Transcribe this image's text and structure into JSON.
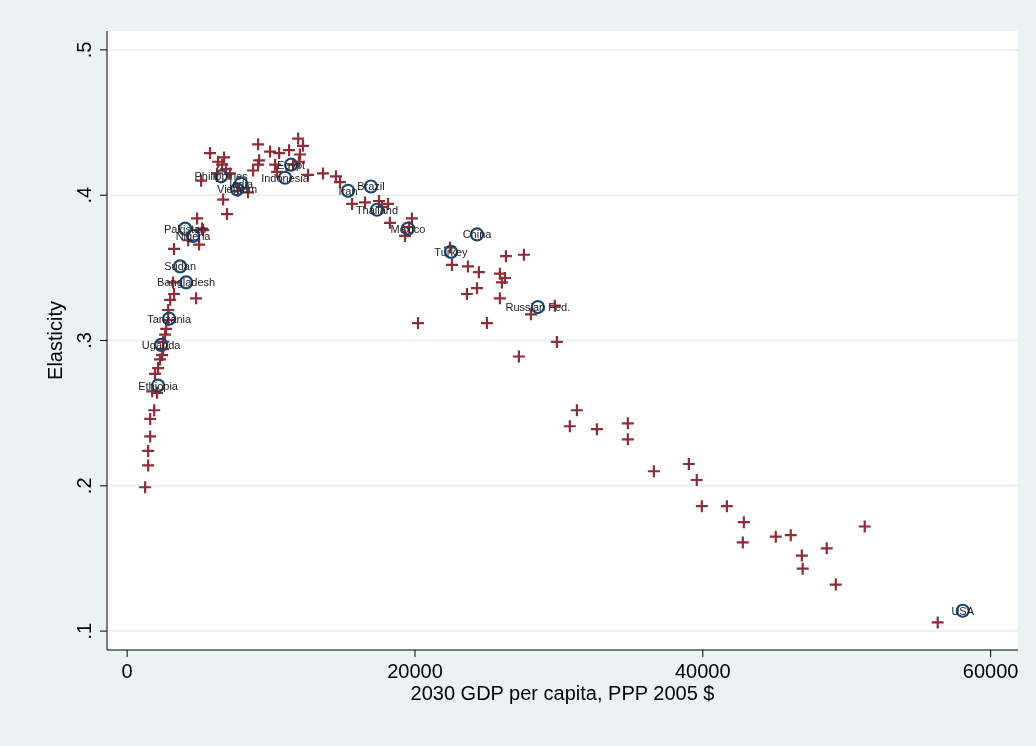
{
  "chart_data": {
    "type": "scatter",
    "xlabel": "2030 GDP per capita, PPP 2005 $",
    "ylabel": "Elasticity",
    "xlim": [
      -1400,
      61900
    ],
    "ylim": [
      0.087,
      0.513
    ],
    "xticks": [
      0,
      20000,
      40000,
      60000
    ],
    "yticks": [
      {
        "value": 0.1,
        "label": ".1"
      },
      {
        "value": 0.2,
        "label": ".2"
      },
      {
        "value": 0.3,
        "label": ".3"
      },
      {
        "value": 0.4,
        "label": ".4"
      },
      {
        "value": 0.5,
        "label": ".5"
      }
    ],
    "grid": "y",
    "series": [
      {
        "color": "#8e2c38",
        "marker": "cross",
        "x": [
          1250,
          1460,
          1460,
          1600,
          1600,
          1880,
          1740,
          2080,
          1940,
          2150,
          2290,
          2430,
          2500,
          2500,
          2640,
          2710,
          2850,
          2850,
          2990,
          3260,
          3190,
          4790,
          3260,
          4860,
          5210,
          4240,
          5000,
          5280,
          6670,
          6940,
          5140,
          5760,
          6320,
          6740,
          6600,
          6880,
          6250,
          7150,
          7710,
          8400,
          9100,
          9170,
          9100,
          8750,
          9930,
          10560,
          11250,
          11880,
          12220,
          12010,
          11940,
          11530,
          10280,
          10420,
          12570,
          13610,
          14510,
          14790,
          15630,
          16530,
          17500,
          17710,
          18130,
          18260,
          19790,
          19580,
          19310,
          22430,
          22570,
          23680,
          24440,
          25900,
          26040,
          26250,
          24310,
          23610,
          25900,
          26320,
          27570,
          28060,
          29720,
          20210,
          25000,
          29860,
          27220,
          31250,
          30760,
          32640,
          34790,
          34790,
          36600,
          39030,
          39580,
          39930,
          41670,
          42850,
          42780,
          45070,
          46110,
          46880,
          46940,
          48610,
          49240,
          51250,
          56320
        ],
        "values": [
          0.199,
          0.214,
          0.224,
          0.234,
          0.246,
          0.252,
          0.265,
          0.264,
          0.277,
          0.281,
          0.287,
          0.29,
          0.294,
          0.299,
          0.304,
          0.308,
          0.314,
          0.321,
          0.328,
          0.332,
          0.34,
          0.329,
          0.363,
          0.384,
          0.377,
          0.369,
          0.366,
          0.376,
          0.397,
          0.387,
          0.41,
          0.429,
          0.423,
          0.426,
          0.421,
          0.418,
          0.415,
          0.415,
          0.403,
          0.402,
          0.435,
          0.424,
          0.421,
          0.417,
          0.43,
          0.429,
          0.431,
          0.439,
          0.434,
          0.428,
          0.423,
          0.421,
          0.421,
          0.416,
          0.414,
          0.415,
          0.413,
          0.409,
          0.394,
          0.395,
          0.396,
          0.392,
          0.394,
          0.381,
          0.384,
          0.378,
          0.372,
          0.364,
          0.352,
          0.351,
          0.347,
          0.346,
          0.34,
          0.343,
          0.336,
          0.332,
          0.329,
          0.358,
          0.359,
          0.318,
          0.324,
          0.312,
          0.312,
          0.299,
          0.289,
          0.252,
          0.241,
          0.239,
          0.243,
          0.232,
          0.21,
          0.215,
          0.204,
          0.186,
          0.186,
          0.175,
          0.161,
          0.165,
          0.166,
          0.152,
          0.143,
          0.157,
          0.132,
          0.172,
          0.106
        ]
      },
      {
        "color": "#1a476f",
        "marker": "circle",
        "x": [
          2150,
          2360,
          2920,
          4100,
          3680,
          4030,
          4580,
          6530,
          7920,
          7640,
          11390,
          10970,
          15350,
          16940,
          17360,
          19510,
          24310,
          22500,
          28540,
          58060
        ],
        "values": [
          0.269,
          0.297,
          0.315,
          0.34,
          0.351,
          0.377,
          0.372,
          0.413,
          0.408,
          0.404,
          0.421,
          0.412,
          0.403,
          0.406,
          0.39,
          0.377,
          0.373,
          0.361,
          0.323,
          0.114
        ]
      }
    ],
    "annotations": [
      {
        "text": "Ethiopia",
        "x": 2150,
        "y": 0.269
      },
      {
        "text": "Uganda",
        "x": 2360,
        "y": 0.297
      },
      {
        "text": "Tanzania",
        "x": 2920,
        "y": 0.315
      },
      {
        "text": "Bangladesh",
        "x": 4100,
        "y": 0.34
      },
      {
        "text": "Sudan",
        "x": 3680,
        "y": 0.351
      },
      {
        "text": "Pakistan",
        "x": 4030,
        "y": 0.377
      },
      {
        "text": "Nigeria",
        "x": 4580,
        "y": 0.372
      },
      {
        "text": "Philippines",
        "x": 6530,
        "y": 0.413
      },
      {
        "text": "India",
        "x": 7920,
        "y": 0.408
      },
      {
        "text": "Vietnam",
        "x": 7640,
        "y": 0.404
      },
      {
        "text": "Egypt",
        "x": 11390,
        "y": 0.421
      },
      {
        "text": "Indonesia",
        "x": 10970,
        "y": 0.412
      },
      {
        "text": "Iran",
        "x": 15350,
        "y": 0.403
      },
      {
        "text": "Brazil",
        "x": 16940,
        "y": 0.406
      },
      {
        "text": "Thailand",
        "x": 17360,
        "y": 0.39
      },
      {
        "text": "Mexico",
        "x": 19510,
        "y": 0.377
      },
      {
        "text": "China",
        "x": 24310,
        "y": 0.373
      },
      {
        "text": "Turkey",
        "x": 22500,
        "y": 0.361
      },
      {
        "text": "Russian Fed.",
        "x": 28540,
        "y": 0.323
      },
      {
        "text": "USA",
        "x": 58060,
        "y": 0.114
      }
    ]
  }
}
